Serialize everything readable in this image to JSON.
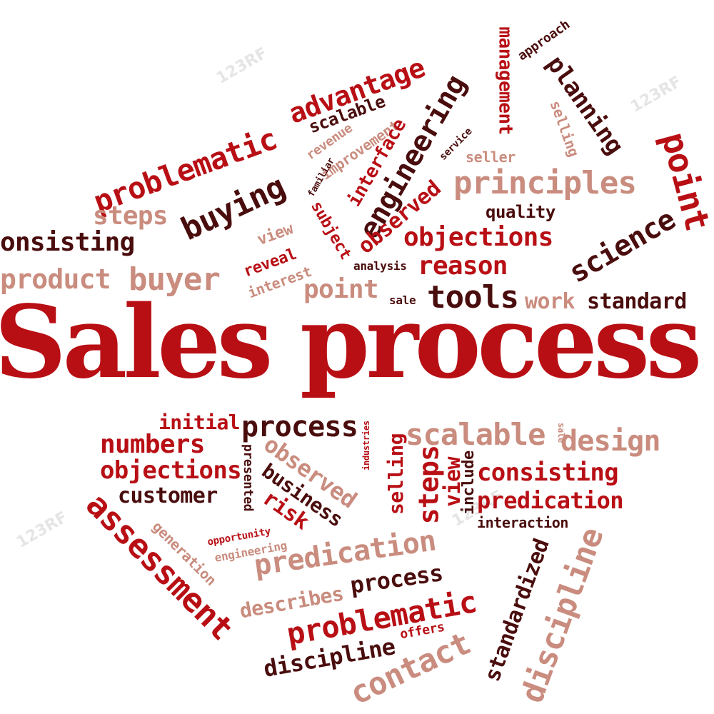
{
  "colors": {
    "red": "#b80f15",
    "dark": "#4a0d0d",
    "pink": "#c98c7e",
    "rose": "#a5322e"
  },
  "watermark": "123RF",
  "words": [
    "Sales process",
    "management",
    "approach",
    "planning",
    "selling",
    "point",
    "advantage",
    "scalable",
    "problematic",
    "revenue",
    "improvement",
    "interface",
    "engineering",
    "familiar",
    "service",
    "seller",
    "principles",
    "buying",
    "steps",
    "observed",
    "quality",
    "onsisting",
    "view",
    "subject",
    "objections",
    "science",
    "reveal",
    "reason",
    "product",
    "buyer",
    "interest",
    "analysis",
    "point",
    "sale",
    "tools",
    "work",
    "standard",
    "initial",
    "process",
    "industries",
    "scalable",
    "sale",
    "design",
    "numbers",
    "presented",
    "observed",
    "selling",
    "steps",
    "view",
    "include",
    "consisting",
    "objections",
    "business",
    "customer",
    "risk",
    "predication",
    "assessment",
    "generation",
    "opportunity",
    "interaction",
    "engineering",
    "predication",
    "process",
    "standardized",
    "discipline",
    "describes",
    "problematic",
    "offers",
    "discipline",
    "contact"
  ]
}
